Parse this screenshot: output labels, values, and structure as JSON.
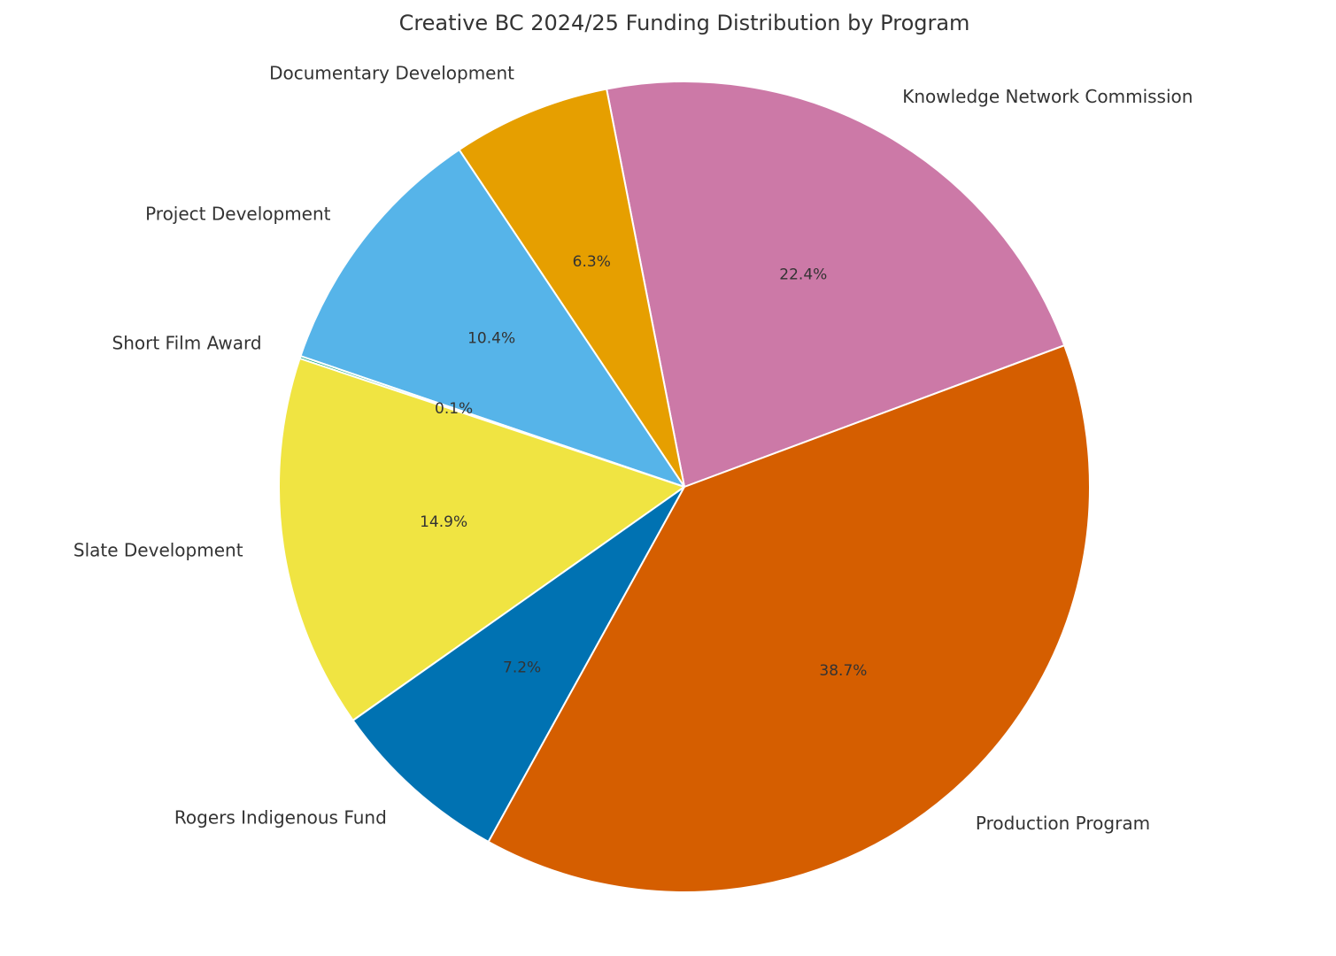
{
  "chart_data": {
    "type": "pie",
    "title": "Creative BC 2024/25 Funding Distribution by Program",
    "start_angle_deg": 20.42,
    "direction": "counterclockwise",
    "slices": [
      {
        "label": "Knowledge Network Commission",
        "value": 22.4,
        "pct_label": "22.4%",
        "color": "#CC79A7"
      },
      {
        "label": "Documentary Development",
        "value": 6.3,
        "pct_label": "6.3%",
        "color": "#E69F00"
      },
      {
        "label": "Project Development",
        "value": 10.4,
        "pct_label": "10.4%",
        "color": "#56B4E9"
      },
      {
        "label": "Short Film Award",
        "value": 0.1,
        "pct_label": "0.1%",
        "color": "#009E73"
      },
      {
        "label": "Slate Development",
        "value": 14.9,
        "pct_label": "14.9%",
        "color": "#F0E442"
      },
      {
        "label": "Rogers Indigenous Fund",
        "value": 7.2,
        "pct_label": "7.2%",
        "color": "#0072B2"
      },
      {
        "label": "Production Program",
        "value": 38.7,
        "pct_label": "38.7%",
        "color": "#D55E00"
      }
    ]
  }
}
